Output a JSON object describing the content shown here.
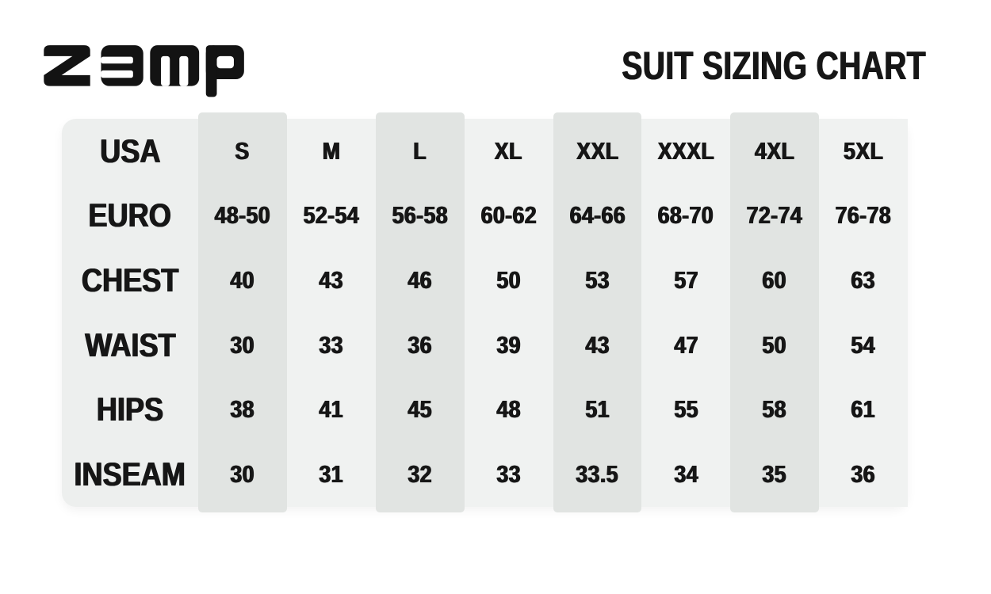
{
  "logo": {
    "text": "zamp"
  },
  "header": {
    "title": "SUIT SIZING CHART"
  },
  "colors": {
    "page_bg": "#ffffff",
    "table_bg": "#edefee",
    "light_col_bg": "#f0f2f1",
    "stripe_bg": "#e1e4e2",
    "text": "#161616"
  },
  "table": {
    "columns": [
      "S",
      "M",
      "L",
      "XL",
      "XXL",
      "XXXL",
      "4XL",
      "5XL"
    ],
    "striped_columns": [
      0,
      2,
      4,
      6
    ],
    "rows": [
      {
        "label": "USA",
        "values": [
          "S",
          "M",
          "L",
          "XL",
          "XXL",
          "XXXL",
          "4XL",
          "5XL"
        ]
      },
      {
        "label": "EURO",
        "values": [
          "48-50",
          "52-54",
          "56-58",
          "60-62",
          "64-66",
          "68-70",
          "72-74",
          "76-78"
        ]
      },
      {
        "label": "CHEST",
        "values": [
          "40",
          "43",
          "46",
          "50",
          "53",
          "57",
          "60",
          "63"
        ]
      },
      {
        "label": "WAIST",
        "values": [
          "30",
          "33",
          "36",
          "39",
          "43",
          "47",
          "50",
          "54"
        ]
      },
      {
        "label": "HIPS",
        "values": [
          "38",
          "41",
          "45",
          "48",
          "51",
          "55",
          "58",
          "61"
        ]
      },
      {
        "label": "INSEAM",
        "values": [
          "30",
          "31",
          "32",
          "33",
          "33.5",
          "34",
          "35",
          "36"
        ]
      }
    ]
  }
}
